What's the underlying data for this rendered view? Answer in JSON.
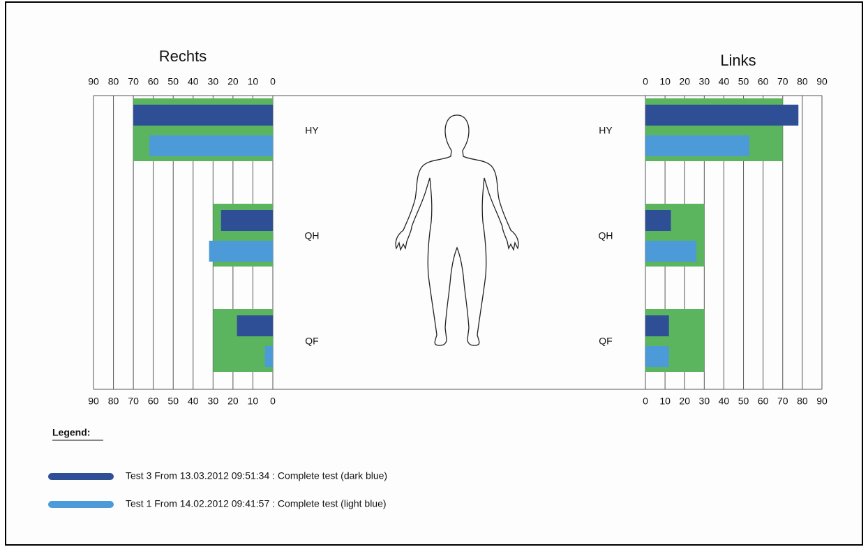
{
  "chart_data": [
    {
      "type": "bar",
      "orientation": "horizontal",
      "title": "Rechts",
      "categories": [
        "HY",
        "QH",
        "QF"
      ],
      "series": [
        {
          "color": "#5bb55e",
          "values": [
            70,
            30,
            30
          ]
        },
        {
          "name": "Test 3 From 13.03.2012 09:51:34 : Complete test (dark blue)",
          "color": "#2e4f95",
          "values": [
            70,
            26,
            18
          ]
        },
        {
          "name": "Test 1 From 14.02.2012 09:41:57 : Complete test (light blue)",
          "color": "#4c9bd8",
          "values": [
            62,
            32,
            4
          ]
        }
      ],
      "xlim": [
        90,
        0
      ],
      "xticks": [
        90,
        80,
        70,
        60,
        50,
        40,
        30,
        20,
        10,
        0
      ],
      "grid": true,
      "legend_title": "Legend:"
    },
    {
      "type": "bar",
      "orientation": "horizontal",
      "title": "Links",
      "categories": [
        "HY",
        "QH",
        "QF"
      ],
      "series": [
        {
          "color": "#5bb55e",
          "values": [
            70,
            30,
            30
          ]
        },
        {
          "color": "#2e4f95",
          "values": [
            78,
            13,
            12
          ]
        },
        {
          "color": "#4c9bd8",
          "values": [
            53,
            26,
            12
          ]
        }
      ],
      "xlim": [
        0,
        90
      ],
      "xticks": [
        0,
        10,
        20,
        30,
        40,
        50,
        60,
        70,
        80,
        90
      ],
      "grid": true
    }
  ]
}
